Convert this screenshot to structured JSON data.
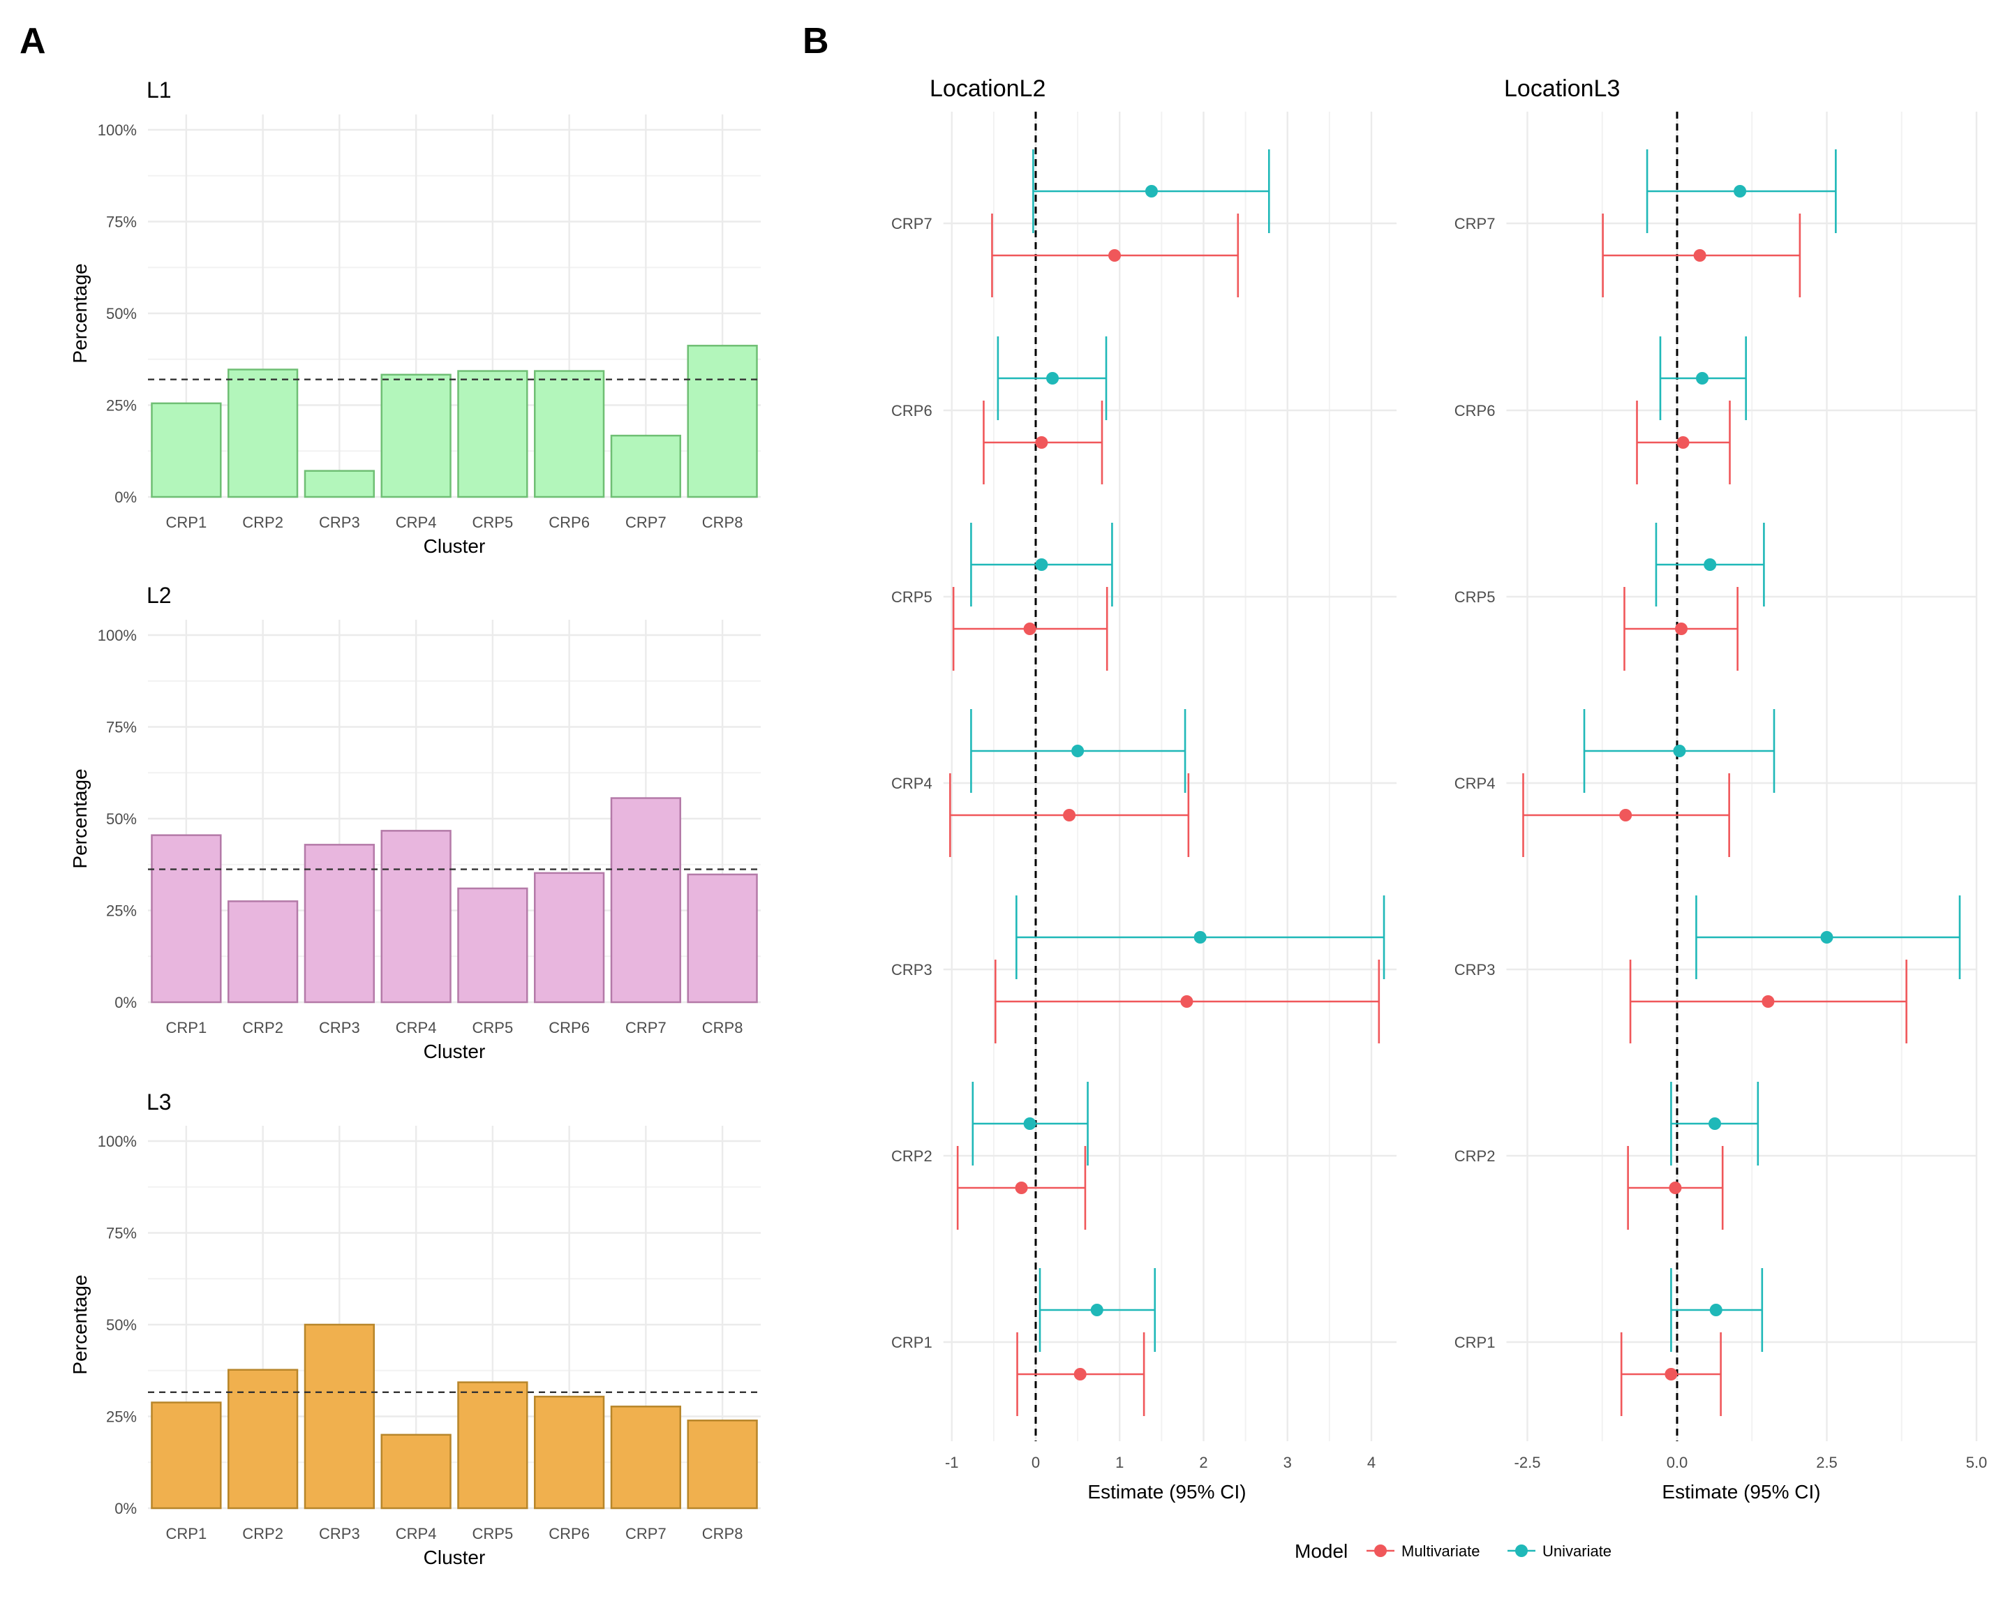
{
  "panels": {
    "a_label": "A",
    "b_label": "B"
  },
  "colors": {
    "L1_fill": "#b3f6bb",
    "L1_stroke": "#6fbf74",
    "L2_fill": "#e8b6de",
    "L2_stroke": "#b47aa8",
    "L3_fill": "#f0b04e",
    "L3_stroke": "#b8862a",
    "multivariate": "#f0575a",
    "univariate": "#1fb8b8",
    "grid": "#ebebeb"
  },
  "chart_data": [
    {
      "type": "bar",
      "title": "L1",
      "xlabel": "Cluster",
      "ylabel": "Percentage",
      "categories": [
        "CRP1",
        "CRP2",
        "CRP3",
        "CRP4",
        "CRP5",
        "CRP6",
        "CRP7",
        "CRP8"
      ],
      "values": [
        25.5,
        34.7,
        7.1,
        33.3,
        34.3,
        34.3,
        16.7,
        41.2
      ],
      "reference_line": 32,
      "ylim": [
        0,
        100
      ],
      "y_ticks": [
        "0%",
        "25%",
        "50%",
        "75%",
        "100%"
      ],
      "grid": true
    },
    {
      "type": "bar",
      "title": "L2",
      "xlabel": "Cluster",
      "ylabel": "Percentage",
      "categories": [
        "CRP1",
        "CRP2",
        "CRP3",
        "CRP4",
        "CRP5",
        "CRP6",
        "CRP7",
        "CRP8"
      ],
      "values": [
        45.5,
        27.5,
        42.9,
        46.7,
        31.0,
        35.2,
        55.6,
        34.8
      ],
      "reference_line": 36.2,
      "ylim": [
        0,
        100
      ],
      "y_ticks": [
        "0%",
        "25%",
        "50%",
        "75%",
        "100%"
      ],
      "grid": true
    },
    {
      "type": "bar",
      "title": "L3",
      "xlabel": "Cluster",
      "ylabel": "Percentage",
      "categories": [
        "CRP1",
        "CRP2",
        "CRP3",
        "CRP4",
        "CRP5",
        "CRP6",
        "CRP7",
        "CRP8"
      ],
      "values": [
        28.8,
        37.7,
        50.0,
        20.0,
        34.3,
        30.4,
        27.7,
        23.9
      ],
      "reference_line": 31.6,
      "ylim": [
        0,
        100
      ],
      "y_ticks": [
        "0%",
        "25%",
        "50%",
        "75%",
        "100%"
      ],
      "grid": true
    },
    {
      "type": "scatter",
      "title": "LocationL2",
      "xlabel": "Estimate (95% CI)",
      "categories": [
        "CRP1",
        "CRP2",
        "CRP3",
        "CRP4",
        "CRP5",
        "CRP6",
        "CRP7"
      ],
      "xlim": [
        -1.1,
        4.3
      ],
      "x_ticks": [
        -1,
        0,
        1,
        2,
        3,
        4
      ],
      "x_tick_labels": [
        "-1",
        "0",
        "1",
        "2",
        "3",
        "4"
      ],
      "reference_line": 0,
      "grid": true,
      "series": [
        {
          "name": "Univariate",
          "estimate": [
            0.73,
            -0.07,
            1.96,
            0.5,
            0.07,
            0.2,
            1.38
          ],
          "lower": [
            0.05,
            -0.75,
            -0.23,
            -0.77,
            -0.77,
            -0.45,
            -0.03
          ],
          "upper": [
            1.42,
            0.62,
            4.15,
            1.78,
            0.91,
            0.84,
            2.78
          ]
        },
        {
          "name": "Multivariate",
          "estimate": [
            0.53,
            -0.17,
            1.8,
            0.4,
            -0.07,
            0.07,
            0.94
          ],
          "lower": [
            -0.22,
            -0.93,
            -0.48,
            -1.02,
            -0.98,
            -0.62,
            -0.52
          ],
          "upper": [
            1.29,
            0.59,
            4.09,
            1.82,
            0.85,
            0.79,
            2.41
          ]
        }
      ]
    },
    {
      "type": "scatter",
      "title": "LocationL3",
      "xlabel": "Estimate (95% CI)",
      "categories": [
        "CRP1",
        "CRP2",
        "CRP3",
        "CRP4",
        "CRP5",
        "CRP6",
        "CRP7"
      ],
      "xlim": [
        -2.85,
        5.0
      ],
      "x_ticks": [
        -2.5,
        0,
        2.5,
        5
      ],
      "x_tick_labels": [
        "-2.5",
        "0.0",
        "2.5",
        "5.0"
      ],
      "reference_line": 0,
      "grid": true,
      "series": [
        {
          "name": "Univariate",
          "estimate": [
            0.65,
            0.63,
            2.5,
            0.04,
            0.55,
            0.42,
            1.05
          ],
          "lower": [
            -0.1,
            -0.1,
            0.32,
            -1.55,
            -0.35,
            -0.28,
            -0.5
          ],
          "upper": [
            1.42,
            1.35,
            4.72,
            1.62,
            1.45,
            1.15,
            2.65
          ]
        },
        {
          "name": "Multivariate",
          "estimate": [
            -0.1,
            -0.03,
            1.52,
            -0.86,
            0.07,
            0.1,
            0.38
          ],
          "lower": [
            -0.93,
            -0.82,
            -0.78,
            -2.57,
            -0.88,
            -0.67,
            -1.24
          ],
          "upper": [
            0.73,
            0.76,
            3.83,
            0.87,
            1.01,
            0.88,
            2.05
          ]
        }
      ]
    }
  ],
  "legend": {
    "title": "Model",
    "items": [
      "Multivariate",
      "Univariate"
    ]
  }
}
